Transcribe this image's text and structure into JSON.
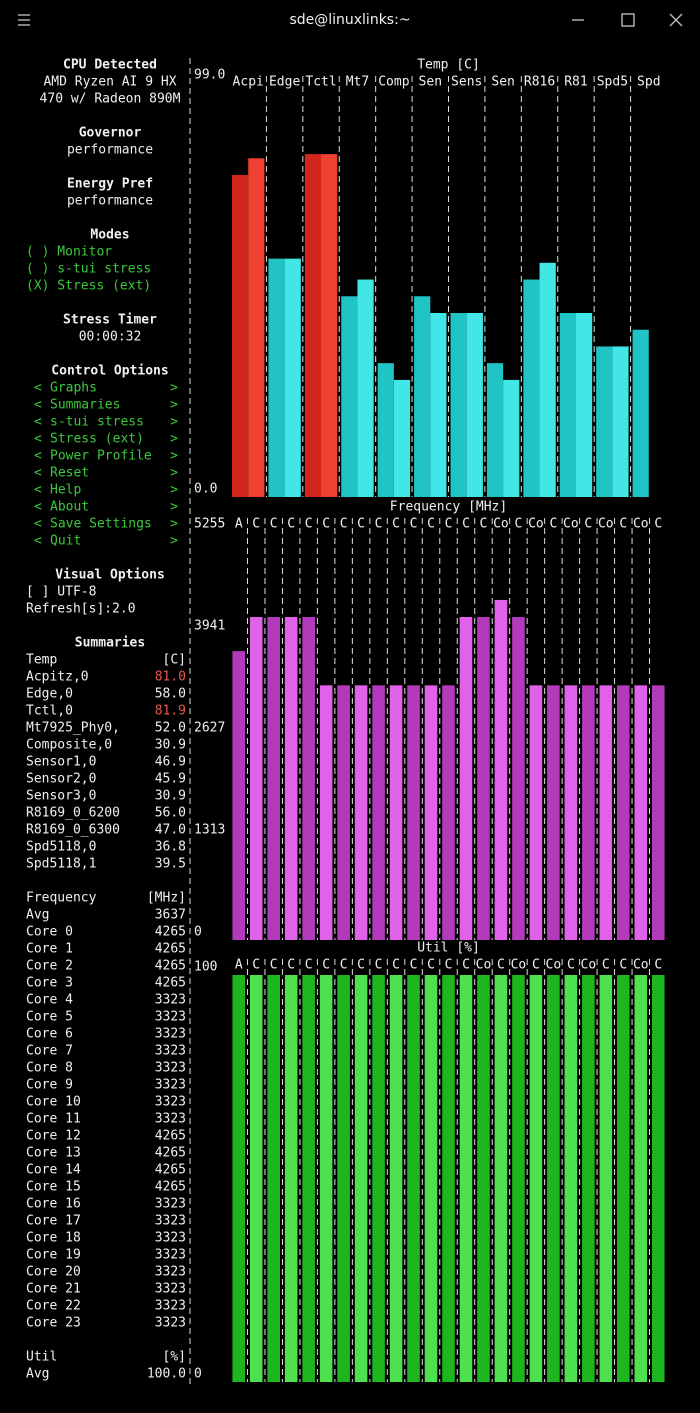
{
  "window": {
    "title": "sde@linuxlinks:~"
  },
  "sidebar": {
    "sections": [
      {
        "heading": "CPU Detected",
        "lines": [
          "AMD Ryzen AI 9 HX",
          "470 w/ Radeon 890M"
        ]
      },
      {
        "heading": "Governor",
        "lines": [
          "performance"
        ]
      },
      {
        "heading": "Energy Pref",
        "lines": [
          "performance"
        ]
      },
      {
        "heading": "Modes",
        "items": [
          "( ) Monitor",
          "( ) s-tui stress",
          "(X) Stress (ext)"
        ]
      },
      {
        "heading": "Stress Timer",
        "lines": [
          "00:00:32"
        ]
      },
      {
        "heading": "Control Options",
        "open": "<",
        "close": ">",
        "menu": [
          "Graphs",
          "Summaries",
          "s-tui stress",
          "Stress (ext)",
          "Power Profile",
          "Reset",
          "Help",
          "About",
          "Save Settings",
          "Quit"
        ]
      },
      {
        "heading": "Visual Options",
        "plain": [
          "[ ] UTF-8",
          "Refresh[s]:2.0"
        ]
      }
    ],
    "summaries": {
      "heading": "Summaries",
      "groups": [
        {
          "name": "Temp",
          "unit": "[C]",
          "rows": [
            {
              "name": "Acpitz,0",
              "value": "81.0",
              "alert": true
            },
            {
              "name": "Edge,0",
              "value": "58.0"
            },
            {
              "name": "Tctl,0",
              "value": "81.9",
              "alert": true
            },
            {
              "name": "Mt7925_Phy0,",
              "value": "52.0"
            },
            {
              "name": "Composite,0",
              "value": "30.9"
            },
            {
              "name": "Sensor1,0",
              "value": "46.9"
            },
            {
              "name": "Sensor2,0",
              "value": "45.9"
            },
            {
              "name": "Sensor3,0",
              "value": "30.9"
            },
            {
              "name": "R8169_0_6200",
              "value": "56.0"
            },
            {
              "name": "R8169_0_6300",
              "value": "47.0"
            },
            {
              "name": "Spd5118,0",
              "value": "36.8"
            },
            {
              "name": "Spd5118,1",
              "value": "39.5"
            }
          ]
        },
        {
          "name": "Frequency",
          "unit": "[MHz]",
          "rows": [
            {
              "name": "Avg",
              "value": 3637
            },
            {
              "name": "Core 0",
              "value": 4265
            },
            {
              "name": "Core 1",
              "value": 4265
            },
            {
              "name": "Core 2",
              "value": 4265
            },
            {
              "name": "Core 3",
              "value": 4265
            },
            {
              "name": "Core 4",
              "value": 3323
            },
            {
              "name": "Core 5",
              "value": 3323
            },
            {
              "name": "Core 6",
              "value": 3323
            },
            {
              "name": "Core 7",
              "value": 3323
            },
            {
              "name": "Core 8",
              "value": 3323
            },
            {
              "name": "Core 9",
              "value": 3323
            },
            {
              "name": "Core 10",
              "value": 3323
            },
            {
              "name": "Core 11",
              "value": 3323
            },
            {
              "name": "Core 12",
              "value": 4265
            },
            {
              "name": "Core 13",
              "value": 4265
            },
            {
              "name": "Core 14",
              "value": 4265
            },
            {
              "name": "Core 15",
              "value": 4265
            },
            {
              "name": "Core 16",
              "value": 3323
            },
            {
              "name": "Core 17",
              "value": 3323
            },
            {
              "name": "Core 18",
              "value": 3323
            },
            {
              "name": "Core 19",
              "value": 3323
            },
            {
              "name": "Core 20",
              "value": 3323
            },
            {
              "name": "Core 21",
              "value": 3323
            },
            {
              "name": "Core 22",
              "value": 3323
            },
            {
              "name": "Core 23",
              "value": 3323
            }
          ]
        },
        {
          "name": "Util",
          "unit": "[%]",
          "rows": [
            {
              "name": "Avg",
              "value": "100.0"
            }
          ]
        }
      ]
    }
  },
  "chart_data": [
    {
      "type": "bar",
      "title": "Temp [C]",
      "ylim": [
        0,
        99
      ],
      "yticks": [
        {
          "value": 99,
          "label": "99.0"
        },
        {
          "value": 0,
          "label": "0.0"
        }
      ],
      "colors": [
        "#20c4c4",
        "#42e6e6"
      ],
      "alert_colors": [
        "#d0261e",
        "#f0402f"
      ],
      "columns": [
        {
          "label": "Acpi",
          "values": [
            77,
            81
          ],
          "alert": true
        },
        {
          "label": "Edge",
          "values": [
            57,
            57
          ]
        },
        {
          "label": "Tctl",
          "values": [
            82,
            82
          ],
          "alert": true
        },
        {
          "label": "Mt7",
          "values": [
            48,
            52
          ]
        },
        {
          "label": "Comp",
          "values": [
            32,
            28
          ]
        },
        {
          "label": "Sen",
          "values": [
            48,
            44
          ]
        },
        {
          "label": "Sens",
          "values": [
            44,
            44
          ]
        },
        {
          "label": "Sen",
          "values": [
            32,
            28
          ]
        },
        {
          "label": "R816",
          "values": [
            52,
            56
          ]
        },
        {
          "label": "R81",
          "values": [
            44,
            44
          ]
        },
        {
          "label": "Spd5",
          "values": [
            36,
            36
          ]
        },
        {
          "label": "Spd",
          "values": [
            40
          ]
        }
      ]
    },
    {
      "type": "bar",
      "title": "Frequency [MHz]",
      "ylim": [
        0,
        5255
      ],
      "yticks": [
        5255,
        3941,
        2627,
        1313,
        0
      ],
      "colors": [
        "#b43abc",
        "#e062e8"
      ],
      "categories": [
        "A",
        "C",
        "C",
        "C",
        "C",
        "C",
        "C",
        "C",
        "C",
        "C",
        "C",
        "C",
        "C",
        "C",
        "C",
        "Co",
        "C",
        "Co",
        "C",
        "Co",
        "C",
        "Co",
        "C",
        "Co",
        "C"
      ],
      "values": [
        3720,
        4160,
        4160,
        4160,
        4160,
        3280,
        3280,
        3280,
        3280,
        3280,
        3280,
        3280,
        3280,
        4160,
        4160,
        4380,
        4160,
        3280,
        3280,
        3280,
        3280,
        3280,
        3280,
        3280,
        3280
      ]
    },
    {
      "type": "bar",
      "title": "Util [%]",
      "ylim": [
        0,
        100
      ],
      "yticks": [
        100,
        0
      ],
      "colors": [
        "#1eb61e",
        "#4ee04e"
      ],
      "categories": [
        "A",
        "C",
        "C",
        "C",
        "C",
        "C",
        "C",
        "C",
        "C",
        "C",
        "C",
        "C",
        "C",
        "C",
        "Co",
        "C",
        "Co",
        "C",
        "Co",
        "C",
        "Co",
        "C",
        "C",
        "Co",
        "C"
      ],
      "values": [
        100,
        100,
        100,
        100,
        100,
        100,
        100,
        100,
        100,
        100,
        100,
        100,
        100,
        100,
        100,
        100,
        100,
        100,
        100,
        100,
        100,
        100,
        100,
        100,
        100
      ]
    }
  ]
}
